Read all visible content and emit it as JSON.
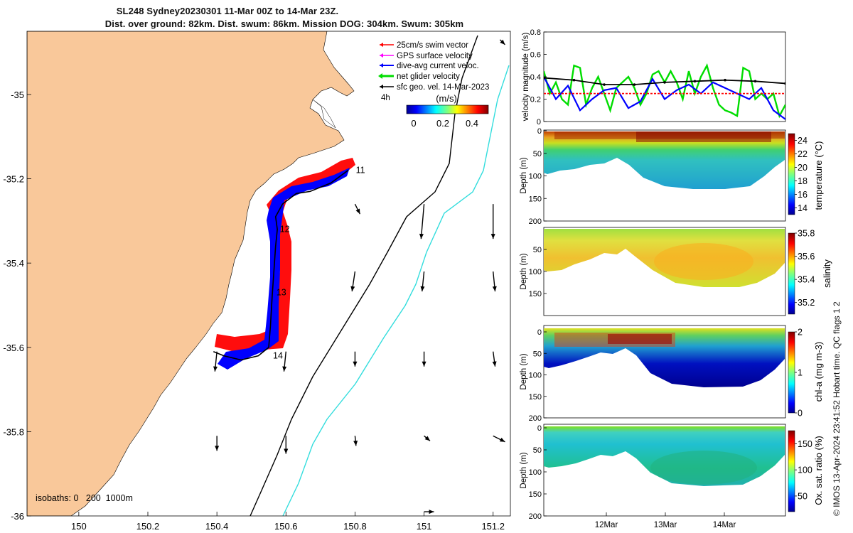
{
  "header": {
    "title_line1": "SL248 Sydney20230301 11-Mar 00Z to 14-Mar 23Z.",
    "title_line2": "Dist. over ground: 82km. Dist. swum: 86km. Mission DOG: 304km. Swum: 305km"
  },
  "footer": {
    "copyright": "© IMOS 13-Apr-2024 23:41:52 Hobart time. QC flags 1  2"
  },
  "colors": {
    "land": "#f9c89a",
    "swim_vector": "#ff0000",
    "gps_velocity": "#ff00ff",
    "dive_avg": "#0000ff",
    "net_velocity": "#00dd00",
    "sfc_geo": "#000000",
    "isobath_200": "#000000",
    "isobath_1000": "#33dddd"
  },
  "chart_data": [
    {
      "id": "map",
      "type": "scatter",
      "xlim": [
        149.85,
        151.25
      ],
      "ylim": [
        -36.0,
        -34.85
      ],
      "x_ticks": [
        "150",
        "150.2",
        "150.4",
        "150.6",
        "150.8",
        "151",
        "151.2"
      ],
      "y_ticks": [
        "-35",
        "-35.2",
        "-35.4",
        "-35.6",
        "-35.8",
        "-36"
      ],
      "legend": {
        "placement": "top-right",
        "entries": [
          "25cm/s swim vector",
          "GPS surface velocity",
          "dive-avg current veloc.",
          "net glider velocity",
          "sfc geo. vel. 14-Mar-2023"
        ],
        "scale_label": "4h"
      },
      "colorbar": {
        "label": "(m/s)",
        "ticks": [
          "0",
          "0.2",
          "0.4"
        ],
        "range": [
          0,
          0.5
        ]
      },
      "isobath_label": "isobaths: 0   200  1000m",
      "day_markers": [
        {
          "label": "11",
          "lon": 150.79,
          "lat": -35.18
        },
        {
          "label": "12",
          "lon": 150.57,
          "lat": -35.32
        },
        {
          "label": "13",
          "lon": 150.56,
          "lat": -35.47
        },
        {
          "label": "14",
          "lon": 150.55,
          "lat": -35.62
        }
      ],
      "track": [
        [
          150.78,
          -35.18
        ],
        [
          150.73,
          -35.21
        ],
        [
          150.67,
          -35.23
        ],
        [
          150.63,
          -35.235
        ],
        [
          150.59,
          -35.26
        ],
        [
          150.57,
          -35.29
        ],
        [
          150.575,
          -35.32
        ],
        [
          150.57,
          -35.36
        ],
        [
          150.565,
          -35.42
        ],
        [
          150.56,
          -35.48
        ],
        [
          150.555,
          -35.55
        ],
        [
          150.55,
          -35.6
        ],
        [
          150.52,
          -35.62
        ],
        [
          150.47,
          -35.63
        ],
        [
          150.42,
          -35.62
        ],
        [
          150.39,
          -35.61
        ]
      ],
      "surface_geo_vectors": [
        {
          "lon": 151.22,
          "lat": -34.87,
          "u": 0.05,
          "v": -0.05
        },
        {
          "lon": 150.8,
          "lat": -35.26,
          "u": 0.05,
          "v": -0.1
        },
        {
          "lon": 151.0,
          "lat": -35.26,
          "u": -0.03,
          "v": -0.35
        },
        {
          "lon": 151.2,
          "lat": -35.26,
          "u": 0.0,
          "v": -0.35
        },
        {
          "lon": 150.8,
          "lat": -35.42,
          "u": -0.03,
          "v": -0.2
        },
        {
          "lon": 151.0,
          "lat": -35.42,
          "u": -0.02,
          "v": -0.2
        },
        {
          "lon": 151.2,
          "lat": -35.42,
          "u": 0.02,
          "v": -0.2
        },
        {
          "lon": 150.4,
          "lat": -35.61,
          "u": -0.02,
          "v": -0.2
        },
        {
          "lon": 150.6,
          "lat": -35.61,
          "u": -0.02,
          "v": -0.2
        },
        {
          "lon": 150.8,
          "lat": -35.61,
          "u": 0.0,
          "v": -0.15
        },
        {
          "lon": 151.0,
          "lat": -35.61,
          "u": 0.0,
          "v": -0.15
        },
        {
          "lon": 151.2,
          "lat": -35.61,
          "u": 0.02,
          "v": -0.15
        },
        {
          "lon": 150.4,
          "lat": -35.81,
          "u": 0.0,
          "v": -0.15
        },
        {
          "lon": 150.6,
          "lat": -35.81,
          "u": 0.0,
          "v": -0.18
        },
        {
          "lon": 150.8,
          "lat": -35.81,
          "u": 0.01,
          "v": -0.1
        },
        {
          "lon": 151.0,
          "lat": -35.81,
          "u": 0.06,
          "v": -0.05
        },
        {
          "lon": 151.2,
          "lat": -35.81,
          "u": 0.12,
          "v": -0.06
        },
        {
          "lon": 151.0,
          "lat": -35.99,
          "u": 0.1,
          "v": 0.0
        }
      ]
    },
    {
      "id": "velocity",
      "type": "line",
      "ylabel": "velocity magnitude (m/s)",
      "ylim": [
        0,
        0.8
      ],
      "y_ticks": [
        "0",
        "0.2",
        "0.4",
        "0.6",
        "0.8"
      ],
      "xlim": [
        0,
        4
      ],
      "series": [
        {
          "color": "#00dd00",
          "x": [
            0,
            0.1,
            0.2,
            0.3,
            0.4,
            0.5,
            0.6,
            0.7,
            0.8,
            0.9,
            1.0,
            1.1,
            1.2,
            1.3,
            1.4,
            1.5,
            1.6,
            1.7,
            1.8,
            1.9,
            2.0,
            2.1,
            2.2,
            2.3,
            2.4,
            2.5,
            2.6,
            2.7,
            2.8,
            2.9,
            3.0,
            3.1,
            3.2,
            3.3,
            3.4,
            3.5,
            3.6,
            3.7,
            3.8,
            3.9,
            4.0
          ],
          "y": [
            0.45,
            0.25,
            0.35,
            0.2,
            0.15,
            0.5,
            0.48,
            0.15,
            0.3,
            0.4,
            0.25,
            0.1,
            0.3,
            0.35,
            0.4,
            0.3,
            0.15,
            0.25,
            0.42,
            0.45,
            0.35,
            0.45,
            0.35,
            0.2,
            0.45,
            0.25,
            0.4,
            0.5,
            0.3,
            0.15,
            0.1,
            0.08,
            0.05,
            0.48,
            0.45,
            0.2,
            0.25,
            0.2,
            0.25,
            0.05,
            0.15
          ]
        },
        {
          "color": "#0000ff",
          "x": [
            0,
            0.2,
            0.4,
            0.6,
            0.8,
            1.0,
            1.2,
            1.4,
            1.6,
            1.8,
            2.0,
            2.2,
            2.4,
            2.6,
            2.8,
            3.0,
            3.2,
            3.4,
            3.6,
            3.8,
            4.0
          ],
          "y": [
            0.4,
            0.2,
            0.32,
            0.1,
            0.2,
            0.28,
            0.3,
            0.12,
            0.18,
            0.38,
            0.2,
            0.28,
            0.33,
            0.25,
            0.35,
            0.3,
            0.25,
            0.2,
            0.3,
            0.1,
            0.02
          ]
        },
        {
          "color": "#000000",
          "x": [
            0,
            0.5,
            1.0,
            1.5,
            2.0,
            2.5,
            3.0,
            3.5,
            4.0
          ],
          "y": [
            0.39,
            0.37,
            0.33,
            0.33,
            0.35,
            0.36,
            0.37,
            0.36,
            0.34
          ]
        },
        {
          "color": "#ff0000",
          "x": [
            0,
            0.5,
            1.0,
            1.5,
            2.0,
            2.5,
            3.0,
            3.5,
            4.0
          ],
          "y": [
            0.25,
            0.25,
            0.25,
            0.25,
            0.25,
            0.25,
            0.25,
            0.25,
            0.25
          ]
        }
      ]
    },
    {
      "id": "temperature",
      "type": "heatmap",
      "ylabel": "Depth (m)",
      "ylim": [
        200,
        0
      ],
      "y_ticks": [
        "0",
        "50",
        "100",
        "150",
        "200"
      ],
      "colorbar": {
        "label": "temperature (°C)",
        "ticks": [
          "14",
          "16",
          "18",
          "20",
          "22",
          "24"
        ],
        "range": [
          13,
          25
        ]
      }
    },
    {
      "id": "salinity",
      "type": "heatmap",
      "ylabel": "Depth (m)",
      "ylim": [
        200,
        0
      ],
      "y_ticks": [
        "50",
        "100",
        "150"
      ],
      "colorbar": {
        "label": "salinity",
        "ticks": [
          "35.2",
          "35.4",
          "35.6",
          "35.8"
        ],
        "range": [
          35.1,
          35.8
        ]
      }
    },
    {
      "id": "chla",
      "type": "heatmap",
      "ylabel": "Depth (m)",
      "ylim": [
        200,
        0
      ],
      "y_ticks": [
        "0",
        "50",
        "100",
        "150",
        "200"
      ],
      "colorbar": {
        "label": "chl-a (mg m-3)",
        "ticks": [
          "0",
          "1",
          "2"
        ],
        "range": [
          0,
          2
        ]
      }
    },
    {
      "id": "oxygen",
      "type": "heatmap",
      "ylabel": "Depth (m)",
      "ylim": [
        200,
        0
      ],
      "y_ticks": [
        "0",
        "50",
        "100",
        "150",
        "200"
      ],
      "colorbar": {
        "label": "Ox. sat. ratio (%)",
        "ticks": [
          "50",
          "100",
          "150"
        ],
        "range": [
          20,
          175
        ]
      }
    }
  ],
  "time_axis": {
    "ticks": [
      "12Mar",
      "13Mar",
      "14Mar"
    ]
  }
}
